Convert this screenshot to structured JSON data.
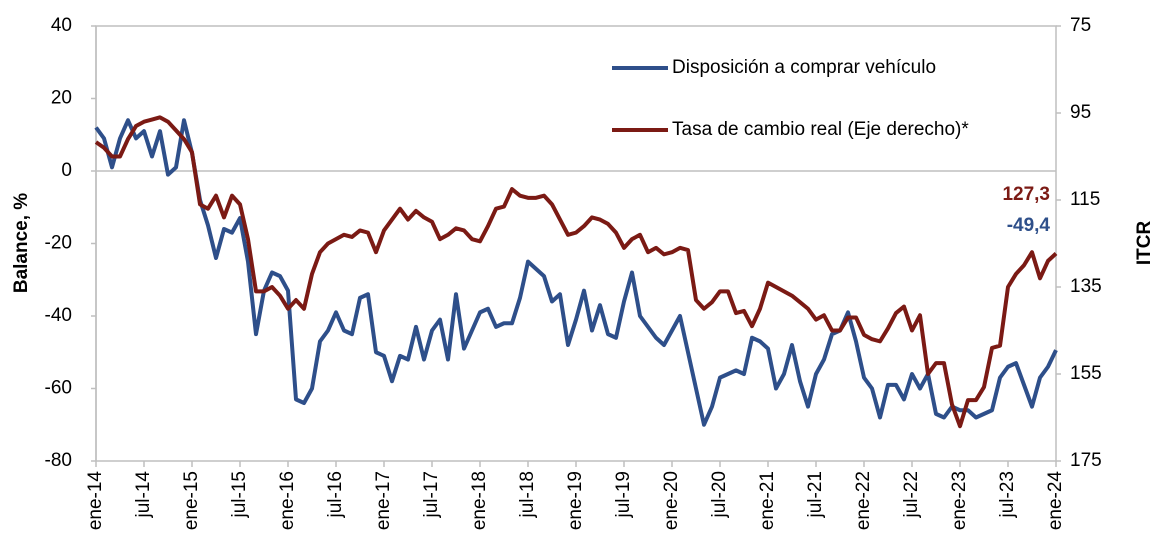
{
  "chart_data": {
    "type": "line",
    "y_label": "Balance, %",
    "y2_label": "ITCR",
    "categories": [
      "ene-14",
      null,
      null,
      null,
      null,
      null,
      "jul-14",
      null,
      null,
      null,
      null,
      null,
      "ene-15",
      null,
      null,
      null,
      null,
      null,
      "jul-15",
      null,
      null,
      null,
      null,
      null,
      "ene-16",
      null,
      null,
      null,
      null,
      null,
      "jul-16",
      null,
      null,
      null,
      null,
      null,
      "ene-17",
      null,
      null,
      null,
      null,
      null,
      "jul-17",
      null,
      null,
      null,
      null,
      null,
      "ene-18",
      null,
      null,
      null,
      null,
      null,
      "jul-18",
      null,
      null,
      null,
      null,
      null,
      "ene-19",
      null,
      null,
      null,
      null,
      null,
      "jul-19",
      null,
      null,
      null,
      null,
      null,
      "ene-20",
      null,
      null,
      null,
      null,
      null,
      "jul-20",
      null,
      null,
      null,
      null,
      null,
      "ene-21",
      null,
      null,
      null,
      null,
      null,
      "jul-21",
      null,
      null,
      null,
      null,
      null,
      "ene-22",
      null,
      null,
      null,
      null,
      null,
      "jul-22",
      null,
      null,
      null,
      null,
      null,
      "ene-23",
      null,
      null,
      null,
      null,
      null,
      "jul-23",
      null,
      null,
      null,
      null,
      null,
      "ene-24"
    ],
    "series": [
      {
        "name": "Disposición a comprar vehículo",
        "color": "#2e4f8a",
        "axis": "y",
        "values": [
          12,
          9,
          1,
          9,
          14,
          9,
          11,
          4,
          11,
          -1,
          1,
          14,
          5,
          -8,
          -15,
          -24,
          -16,
          -17,
          -13,
          -25,
          -45,
          -33,
          -28,
          -29,
          -33,
          -63,
          -64,
          -60,
          -47,
          -44,
          -39,
          -44,
          -45,
          -35,
          -34,
          -50,
          -51,
          -58,
          -51,
          -52,
          -43,
          -52,
          -44,
          -41,
          -52,
          -34,
          -49,
          -44,
          -39,
          -38,
          -43,
          -42,
          -42,
          -35,
          -25,
          -27,
          -29,
          -36,
          -34,
          -48,
          -41,
          -33,
          -44,
          -37,
          -45,
          -46,
          -36,
          -28,
          -40,
          -43,
          -46,
          -48,
          -44,
          -40,
          -50,
          -60,
          -70,
          -65,
          -57,
          -56,
          -55,
          -56,
          -46,
          -47,
          -49,
          -60,
          -56,
          -48,
          -58,
          -65,
          -56,
          -52,
          -45,
          -44,
          -39,
          -47,
          -57,
          -60,
          -68,
          -59,
          -59,
          -63,
          -56,
          -60,
          -56,
          -67,
          -68,
          -65,
          -66,
          -66,
          -68,
          -67,
          -66,
          -57,
          -54,
          -53,
          -59,
          -65,
          -57,
          -54,
          -49.4
        ],
        "value_labels": [
          null,
          null,
          null,
          null,
          null,
          null,
          null,
          null,
          null,
          null,
          null,
          null,
          null,
          null,
          null,
          null,
          null,
          null,
          null,
          null,
          null,
          null,
          null,
          null,
          null,
          null,
          null,
          null,
          null,
          null,
          null,
          null,
          null,
          null,
          null,
          null,
          null,
          null,
          null,
          null,
          null,
          null,
          null,
          null,
          null,
          null,
          null,
          null,
          null,
          null,
          null,
          null,
          null,
          null,
          null,
          null,
          null,
          null,
          null,
          null,
          null,
          null,
          null,
          null,
          null,
          null,
          null,
          null,
          null,
          null,
          null,
          null,
          null,
          null,
          null,
          null,
          null,
          null,
          null,
          null,
          null,
          null,
          null,
          null,
          null,
          null,
          null,
          null,
          null,
          null,
          null,
          null,
          null,
          null,
          null,
          null,
          null,
          null,
          null,
          null,
          null,
          null,
          null,
          null,
          null,
          null,
          null,
          null,
          null,
          null,
          null,
          null,
          null,
          null,
          null,
          null,
          null,
          null,
          null,
          null,
          "-49,4"
        ]
      },
      {
        "name": "Tasa de cambio real (Eje derecho)*",
        "color": "#7b1a14",
        "axis": "y2",
        "values": [
          101.7,
          103,
          105,
          105,
          101,
          98,
          97,
          96.5,
          96,
          97,
          99,
          101,
          104,
          116,
          117,
          114,
          119,
          114,
          116,
          124,
          136,
          136,
          135,
          137,
          140,
          138,
          140,
          132,
          127,
          125,
          124,
          123,
          123.5,
          122,
          122.5,
          127,
          122,
          119.5,
          117,
          119.5,
          117.5,
          119,
          120,
          124,
          123,
          121.5,
          122,
          124,
          124.5,
          121,
          117,
          116.5,
          112.5,
          114,
          114.5,
          114.5,
          114,
          116,
          119.5,
          123,
          122.5,
          121,
          119,
          119.5,
          120.5,
          122.5,
          126,
          124,
          123,
          127,
          126,
          127.5,
          127,
          126,
          126.5,
          138,
          140,
          138.5,
          136,
          136,
          141,
          140.5,
          144,
          140,
          134,
          135,
          136,
          137,
          138.5,
          140,
          142.5,
          141.5,
          145,
          145,
          142,
          142,
          146,
          147,
          147.5,
          144.5,
          141,
          139.5,
          145,
          141.5,
          155,
          152.5,
          152.5,
          162,
          167,
          161,
          161,
          158,
          149,
          148.5,
          135,
          132,
          130,
          127,
          133,
          129,
          127.3
        ],
        "value_labels": [
          null,
          null,
          null,
          null,
          null,
          null,
          null,
          null,
          null,
          null,
          null,
          null,
          null,
          null,
          null,
          null,
          null,
          null,
          null,
          null,
          null,
          null,
          null,
          null,
          null,
          null,
          null,
          null,
          null,
          null,
          null,
          null,
          null,
          null,
          null,
          null,
          null,
          null,
          null,
          null,
          null,
          null,
          null,
          null,
          null,
          null,
          null,
          null,
          null,
          null,
          null,
          null,
          null,
          null,
          null,
          null,
          null,
          null,
          null,
          null,
          null,
          null,
          null,
          null,
          null,
          null,
          null,
          null,
          null,
          null,
          null,
          null,
          null,
          null,
          null,
          null,
          null,
          null,
          null,
          null,
          null,
          null,
          null,
          null,
          null,
          null,
          null,
          null,
          null,
          null,
          null,
          null,
          null,
          null,
          null,
          null,
          null,
          null,
          null,
          null,
          null,
          null,
          null,
          null,
          null,
          null,
          null,
          null,
          null,
          null,
          null,
          null,
          null,
          null,
          null,
          null,
          null,
          null,
          null,
          null,
          "127,3"
        ]
      }
    ],
    "ylim": [
      -80,
      40
    ],
    "yticks": [
      40,
      20,
      0,
      -20,
      -40,
      -60,
      -80
    ],
    "y2lim": [
      175,
      75
    ],
    "y2ticks": [
      75,
      95,
      115,
      135,
      155,
      175
    ],
    "legend": "upper right"
  }
}
